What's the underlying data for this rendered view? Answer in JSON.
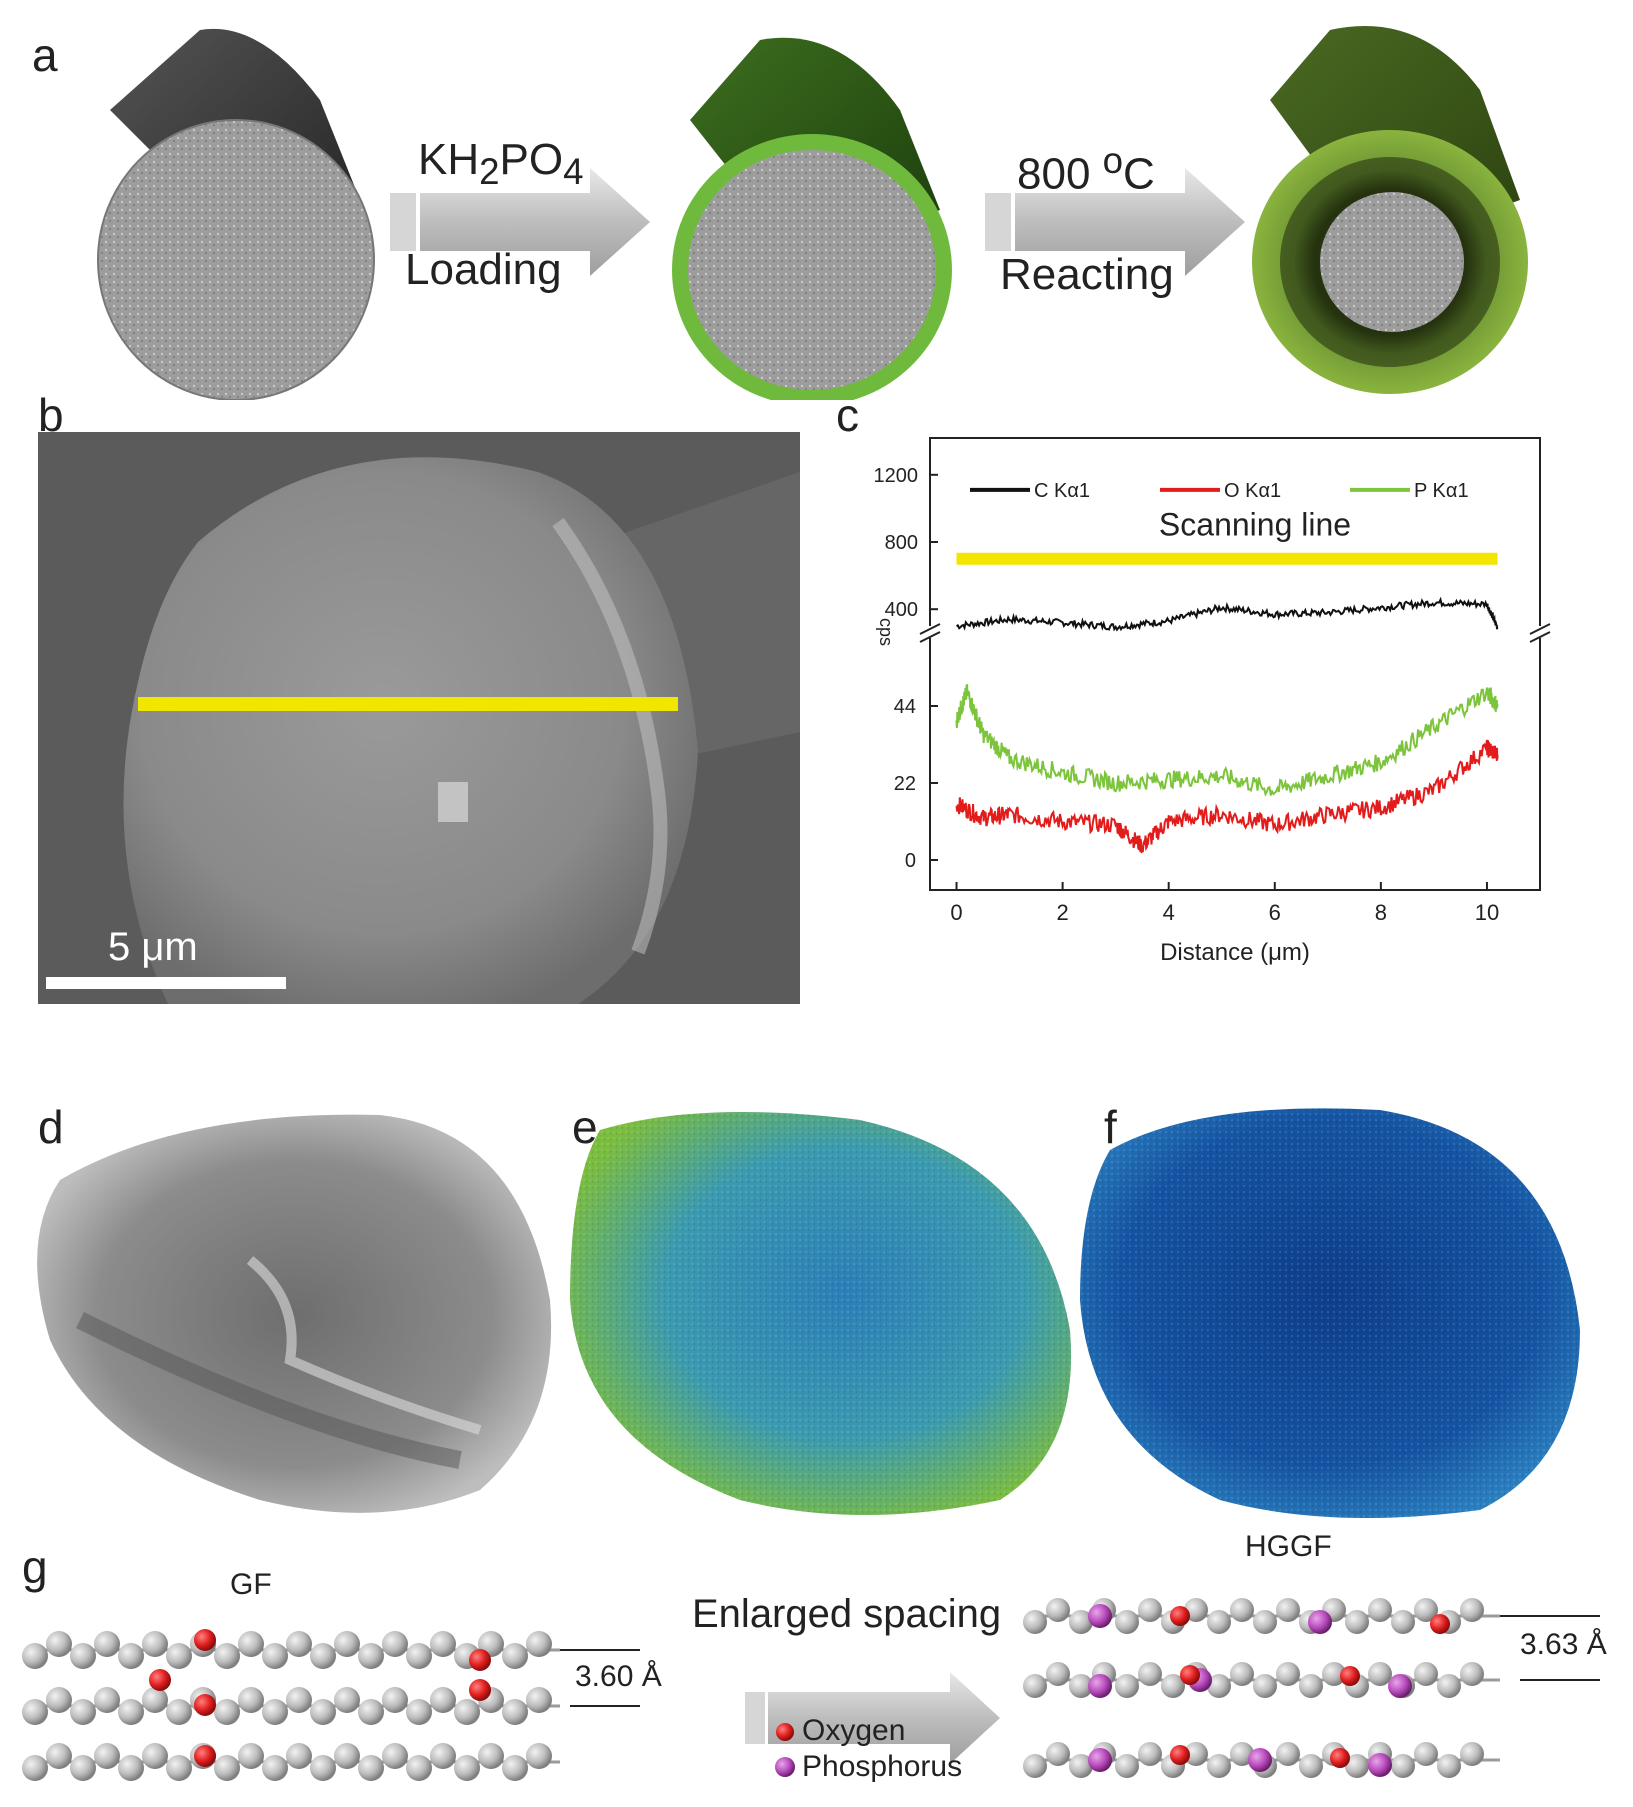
{
  "panel_labels": {
    "a": "a",
    "b": "b",
    "c": "c",
    "d": "d",
    "e": "e",
    "f": "f",
    "g": "g"
  },
  "panel_a": {
    "step1_top_html": "KH<sub>2</sub>PO<sub>4</sub>",
    "step1_bottom": "Loading",
    "step2_top_html": "800 <sup>o</sup>C",
    "step2_bottom": "Reacting"
  },
  "panel_b": {
    "scale_bar": "5 μm"
  },
  "panel_c": {
    "annotation": "Scanning line"
  },
  "panel_g": {
    "left_label": "GF",
    "right_label": "HGGF",
    "arrow_label": "Enlarged spacing",
    "left_spacing": "3.60 Å",
    "right_spacing": "3.63 Å",
    "legend_oxygen": "Oxygen",
    "legend_phosphorus": "Phosphorus"
  },
  "colors": {
    "graphite": "#8a8a8a",
    "green_shell": "#7ec24a",
    "dark_green": "#4a6a22",
    "yellow_line": "#f2e600",
    "oxygen": "#e01e1e",
    "phosphorus": "#b94bbd",
    "carbon_atom": "#c8c8c8"
  },
  "chart_data": {
    "type": "line",
    "xlabel": "Distance (μm)",
    "ylabel": "cps",
    "x_ticks": [
      0,
      2,
      4,
      6,
      8,
      10
    ],
    "xlim": [
      -0.5,
      11
    ],
    "y_ticks_upper": [
      400,
      800,
      1200
    ],
    "y_ticks_lower": [
      0,
      22,
      44
    ],
    "ylim_upper": [
      300,
      1300
    ],
    "ylim_lower": [
      0,
      60
    ],
    "legend_placement": "top",
    "series": [
      {
        "name": "C Kα1",
        "color": "#111111",
        "axis": "upper",
        "x": [
          0,
          1,
          2,
          3,
          4,
          5,
          6,
          7,
          8,
          9,
          10,
          10.2
        ],
        "y": [
          300,
          340,
          320,
          295,
          330,
          410,
          370,
          380,
          410,
          440,
          430,
          290
        ]
      },
      {
        "name": "O Kα1",
        "color": "#e31b1b",
        "axis": "lower",
        "x": [
          0,
          0.5,
          1,
          2,
          3,
          3.5,
          4,
          5,
          6,
          7,
          8,
          9,
          10,
          10.2
        ],
        "y": [
          16,
          12,
          13,
          11,
          10,
          4,
          11,
          13,
          10,
          13,
          15,
          20,
          32,
          30
        ]
      },
      {
        "name": "P Kα1",
        "color": "#7cc43b",
        "axis": "lower",
        "x": [
          0,
          0.2,
          0.5,
          1,
          2,
          3,
          4,
          5,
          6,
          7,
          8,
          9,
          10,
          10.2
        ],
        "y": [
          40,
          48,
          36,
          29,
          25,
          22,
          23,
          24,
          20,
          24,
          28,
          38,
          48,
          44
        ]
      }
    ]
  }
}
